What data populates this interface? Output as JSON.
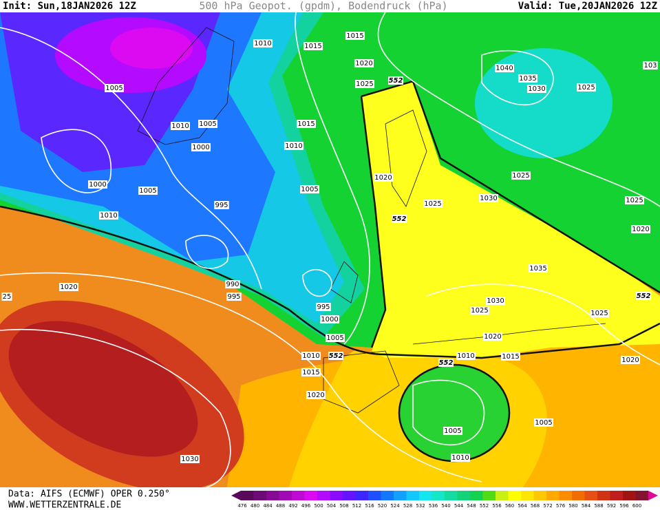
{
  "header": {
    "init": "Init: Sun,18JAN2026 12Z",
    "title": "500 hPa Geopot. (gpdm), Bodendruck (hPa)",
    "valid": "Valid: Tue,20JAN2026 12Z"
  },
  "isobar_labels": [
    "1015",
    "1010",
    "1015",
    "1020",
    "1025",
    "1040",
    "1035",
    "1030",
    "1025",
    "103",
    "1005",
    "1010",
    "1005",
    "1015",
    "1010",
    "1000",
    "1000",
    "1005",
    "1005",
    "1020",
    "1025",
    "1030",
    "1025",
    "1025",
    "995",
    "1010",
    "1020",
    "1035",
    "990",
    "995",
    "1020",
    "25",
    "1030",
    "1025",
    "1025",
    "995",
    "1000",
    "1005",
    "1020",
    "1010",
    "1010",
    "1015",
    "1020",
    "1015",
    "1020",
    "1005",
    "1005",
    "1010",
    "1030"
  ],
  "contour_labels": [
    "552",
    "552",
    "552",
    "552",
    "552"
  ],
  "scale": {
    "labels": [
      476,
      480,
      484,
      488,
      492,
      496,
      500,
      504,
      508,
      512,
      516,
      520,
      524,
      528,
      532,
      536,
      540,
      544,
      548,
      552,
      556,
      560,
      564,
      568,
      572,
      576,
      580,
      584,
      588,
      592,
      596,
      600
    ],
    "colors": [
      "#5a0a5a",
      "#6e0a78",
      "#870a96",
      "#a00ab4",
      "#be0ad2",
      "#dc0af0",
      "#b40aff",
      "#8c0aff",
      "#6414ff",
      "#3c28ff",
      "#1e50ff",
      "#1478ff",
      "#14a0ff",
      "#14c8ff",
      "#14e6f0",
      "#14e6c8",
      "#14dca0",
      "#14d278",
      "#14d250",
      "#50dc14",
      "#c8f014",
      "#ffff00",
      "#ffe600",
      "#ffc800",
      "#ffaa00",
      "#ff8c00",
      "#f06e00",
      "#e65014",
      "#d23214",
      "#be1e1e",
      "#a01414",
      "#82142d"
    ]
  },
  "footer": {
    "data": "Data: AIFS (ECMWF) OPER 0.250°",
    "site": "WWW.WETTERZENTRALE.DE"
  }
}
